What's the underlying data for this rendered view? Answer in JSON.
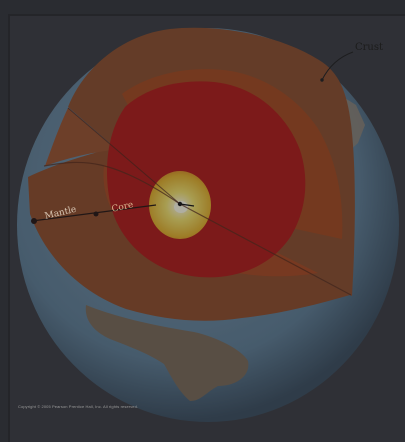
{
  "diagram": {
    "labels": {
      "crust": "Crust",
      "mantle": "Mantle",
      "outer_core": "Core"
    },
    "copyright": "Copyright © 2005 Pearson Prentice Hall, Inc. All rights reserved."
  },
  "colors": {
    "background": "#34363b",
    "panel": "#3b3d42",
    "ocean": "#5f7f96",
    "land": "#7b6a58",
    "crust_surface": "#8a4f2c",
    "mantle": "#9b4a22",
    "outer_core": "#b8191b",
    "inner_core": "#f0d130",
    "center_glow": "#ffffe6"
  },
  "icons": {
    "earth": "earth-cutaway-diagram"
  }
}
